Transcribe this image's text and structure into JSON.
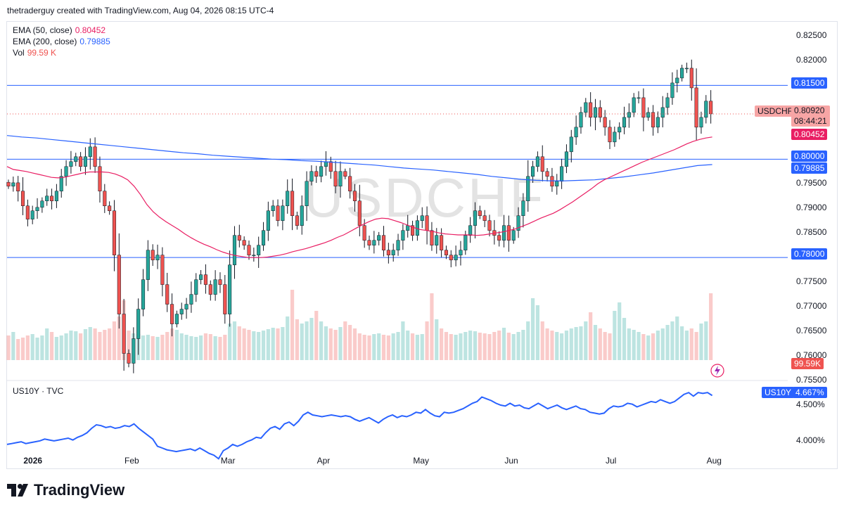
{
  "header": {
    "text": "thetraderguy created with TradingView.com, Aug 04, 2026 08:15 UTC-4"
  },
  "watermark": "USDCHF",
  "legend": {
    "ema50": {
      "label": "EMA (50, close)",
      "value": "0.80452",
      "color": "#e91e63"
    },
    "ema200": {
      "label": "EMA (200, close)",
      "value": "0.79885",
      "color": "#2962ff"
    },
    "vol": {
      "label": "Vol",
      "value": "99.59 K",
      "color": "#ef5350"
    }
  },
  "price_axis": {
    "ticks": [
      "0.82500",
      "0.82000",
      "0.81500",
      "0.81000",
      "0.80500",
      "0.80000",
      "0.79500",
      "0.79000",
      "0.78500",
      "0.78000",
      "0.77500",
      "0.77000",
      "0.76500",
      "0.76000",
      "0.75500"
    ]
  },
  "price_tags": {
    "symbol": "USDCHF",
    "last": "0.80920",
    "countdown": "08:44:21",
    "ema50": "0.80452",
    "ema200": "0.79885",
    "vol": "99.59K",
    "level_815": "0.81500",
    "level_800": "0.80000",
    "level_780": "0.78000"
  },
  "x_axis": {
    "labels": [
      "2026",
      "Feb",
      "Mar",
      "Apr",
      "May",
      "Jun",
      "Jul",
      "Aug"
    ]
  },
  "lower_pane": {
    "title": "US10Y · TVC",
    "symbol_tag": "US10Y",
    "last_tag": "4.667%",
    "ticks": [
      "4.500%",
      "4.000%"
    ]
  },
  "footer": {
    "brand": "TradingView"
  },
  "colors": {
    "up": "#26a69a",
    "down": "#ef5350",
    "ema50": "#e91e63",
    "ema200": "#2962ff",
    "hline": "#2962ff",
    "yields": "#2962ff"
  },
  "chart_data": {
    "type": "candlestick",
    "symbol": "USDCHF",
    "ylim": [
      0.755,
      0.8265
    ],
    "horizontal_levels": [
      0.815,
      0.8,
      0.78
    ],
    "last_price": 0.8092,
    "months": [
      {
        "label": "2026",
        "index": 4
      },
      {
        "label": "Feb",
        "index": 25
      },
      {
        "label": "Mar",
        "index": 45
      },
      {
        "label": "Apr",
        "index": 65
      },
      {
        "label": "May",
        "index": 85
      },
      {
        "label": "Jun",
        "index": 104
      },
      {
        "label": "Jul",
        "index": 125
      },
      {
        "label": "Aug",
        "index": 146
      }
    ],
    "close": [
      0.7945,
      0.7952,
      0.7935,
      0.7905,
      0.7878,
      0.7895,
      0.7902,
      0.7915,
      0.7925,
      0.7915,
      0.7935,
      0.7965,
      0.7985,
      0.7995,
      0.8005,
      0.7985,
      0.8005,
      0.8025,
      0.7985,
      0.7935,
      0.7905,
      0.7895,
      0.7805,
      0.7685,
      0.7605,
      0.7585,
      0.7635,
      0.7695,
      0.7755,
      0.7815,
      0.7795,
      0.7805,
      0.7745,
      0.7705,
      0.7665,
      0.7685,
      0.7695,
      0.7705,
      0.7725,
      0.7755,
      0.7765,
      0.7745,
      0.7725,
      0.7755,
      0.7745,
      0.7685,
      0.7785,
      0.7845,
      0.7835,
      0.7825,
      0.7805,
      0.7805,
      0.7825,
      0.7855,
      0.7895,
      0.7905,
      0.7875,
      0.7905,
      0.7935,
      0.7885,
      0.7865,
      0.7905,
      0.7955,
      0.7975,
      0.7965,
      0.7985,
      0.7995,
      0.7975,
      0.7945,
      0.7975,
      0.7965,
      0.7935,
      0.7915,
      0.7865,
      0.7835,
      0.7825,
      0.7835,
      0.7845,
      0.7815,
      0.7805,
      0.7815,
      0.7835,
      0.7855,
      0.7865,
      0.7845,
      0.7875,
      0.7885,
      0.7855,
      0.7825,
      0.7845,
      0.7815,
      0.7805,
      0.7795,
      0.7805,
      0.7815,
      0.7845,
      0.7865,
      0.7895,
      0.7885,
      0.7875,
      0.7855,
      0.7845,
      0.7835,
      0.7865,
      0.7835,
      0.7855,
      0.7885,
      0.7915,
      0.7965,
      0.7985,
      0.8005,
      0.7975,
      0.7965,
      0.7945,
      0.7955,
      0.7985,
      0.8015,
      0.8045,
      0.8065,
      0.8095,
      0.8115,
      0.8085,
      0.8105,
      0.8085,
      0.8065,
      0.8035,
      0.8055,
      0.8065,
      0.8085,
      0.8095,
      0.8125,
      0.8125,
      0.8085,
      0.8095,
      0.8065,
      0.8085,
      0.8105,
      0.8125,
      0.8155,
      0.8165,
      0.8185,
      0.8185,
      0.8145,
      0.8065,
      0.8085,
      0.8118,
      0.8092
    ],
    "ema50": [
      0.7985,
      0.7979,
      0.7977,
      0.7975,
      0.7972,
      0.7969,
      0.7966,
      0.7963,
      0.7962,
      0.7963,
      0.7966,
      0.7969,
      0.7972,
      0.7974,
      0.7974,
      0.7974,
      0.7973,
      0.797,
      0.7965,
      0.7958,
      0.7945,
      0.7928,
      0.7908,
      0.7893,
      0.7882,
      0.7873,
      0.7865,
      0.7857,
      0.7848,
      0.784,
      0.7833,
      0.7827,
      0.7822,
      0.7816,
      0.7811,
      0.7807,
      0.7804,
      0.7802,
      0.78,
      0.78,
      0.78,
      0.7801,
      0.7803,
      0.7805,
      0.7808,
      0.7812,
      0.7815,
      0.7818,
      0.7822,
      0.7826,
      0.783,
      0.7835,
      0.7841,
      0.7846,
      0.7853,
      0.786,
      0.7867,
      0.7873,
      0.7878,
      0.788,
      0.7879,
      0.7875,
      0.7871,
      0.7866,
      0.7861,
      0.7857,
      0.7855,
      0.7853,
      0.785,
      0.7848,
      0.7847,
      0.7846,
      0.7846,
      0.7846,
      0.7845,
      0.7846,
      0.7848,
      0.785,
      0.7852,
      0.7855,
      0.7858,
      0.7863,
      0.7868,
      0.7874,
      0.788,
      0.7885,
      0.789,
      0.7897,
      0.7905,
      0.7913,
      0.7922,
      0.7931,
      0.794,
      0.795,
      0.7958,
      0.7964,
      0.797,
      0.7976,
      0.7982,
      0.7988,
      0.7994,
      0.7999,
      0.8004,
      0.8009,
      0.8014,
      0.8019,
      0.8025,
      0.8031,
      0.8036,
      0.804,
      0.8043,
      0.8045
    ],
    "ema200": [
      0.8048,
      0.8045,
      0.8043,
      0.804,
      0.8037,
      0.8034,
      0.8031,
      0.8028,
      0.8025,
      0.8022,
      0.8019,
      0.8016,
      0.8013,
      0.8011,
      0.8008,
      0.8006,
      0.8004,
      0.8002,
      0.8,
      0.7999,
      0.7997,
      0.7996,
      0.7994,
      0.7992,
      0.799,
      0.7988,
      0.7985,
      0.7982,
      0.798,
      0.7978,
      0.7975,
      0.7972,
      0.7969,
      0.7965,
      0.7962,
      0.7959,
      0.7957,
      0.7956,
      0.7956,
      0.7957,
      0.7958,
      0.7961,
      0.7964,
      0.7968,
      0.7972,
      0.7977,
      0.7982,
      0.7987,
      0.7989
    ],
    "volume_relative": [
      0.35,
      0.4,
      0.3,
      0.32,
      0.35,
      0.37,
      0.32,
      0.35,
      0.45,
      0.4,
      0.33,
      0.35,
      0.38,
      0.42,
      0.41,
      0.38,
      0.44,
      0.47,
      0.45,
      0.4,
      0.43,
      0.45,
      0.55,
      0.62,
      0.85,
      0.42,
      0.38,
      0.37,
      0.35,
      0.36,
      0.34,
      0.33,
      0.36,
      0.4,
      0.45,
      0.43,
      0.38,
      0.36,
      0.34,
      0.33,
      0.35,
      0.38,
      0.37,
      0.34,
      0.33,
      0.36,
      0.52,
      0.55,
      0.48,
      0.45,
      0.43,
      0.41,
      0.4,
      0.42,
      0.44,
      0.46,
      0.45,
      0.47,
      0.62,
      1.0,
      0.58,
      0.52,
      0.55,
      0.6,
      0.7,
      0.55,
      0.48,
      0.45,
      0.43,
      0.47,
      0.55,
      0.5,
      0.45,
      0.38,
      0.36,
      0.35,
      0.37,
      0.38,
      0.36,
      0.35,
      0.38,
      0.4,
      0.55,
      0.42,
      0.38,
      0.36,
      0.37,
      0.55,
      0.95,
      0.58,
      0.45,
      0.4,
      0.37,
      0.36,
      0.38,
      0.4,
      0.42,
      0.41,
      0.39,
      0.38,
      0.37,
      0.4,
      0.42,
      0.46,
      0.39,
      0.37,
      0.4,
      0.43,
      0.55,
      0.88,
      0.78,
      0.55,
      0.45,
      0.42,
      0.4,
      0.38,
      0.42,
      0.45,
      0.47,
      0.48,
      0.55,
      0.68,
      0.5,
      0.45,
      0.4,
      0.38,
      0.7,
      0.82,
      0.6,
      0.45,
      0.43,
      0.4,
      0.37,
      0.35,
      0.38,
      0.42,
      0.45,
      0.5,
      0.55,
      0.62,
      0.48,
      0.42,
      0.45,
      0.4,
      0.52,
      0.55,
      0.95,
      0.62,
      0.48
    ],
    "us10y": [
      4.12,
      4.13,
      4.14,
      4.15,
      4.13,
      4.14,
      4.15,
      4.16,
      4.18,
      4.17,
      4.16,
      4.17,
      4.18,
      4.19,
      4.17,
      4.2,
      4.22,
      4.25,
      4.3,
      4.34,
      4.33,
      4.31,
      4.32,
      4.3,
      4.31,
      4.33,
      4.32,
      4.35,
      4.3,
      4.26,
      4.22,
      4.18,
      4.1,
      4.08,
      4.06,
      4.05,
      4.04,
      4.05,
      4.06,
      4.07,
      4.05,
      4.08,
      4.05,
      4.02,
      4.0,
      3.96,
      4.05,
      4.08,
      4.12,
      4.1,
      4.12,
      4.15,
      4.17,
      4.2,
      4.19,
      4.25,
      4.3,
      4.32,
      4.29,
      4.35,
      4.37,
      4.33,
      4.38,
      4.45,
      4.48,
      4.45,
      4.44,
      4.43,
      4.44,
      4.45,
      4.44,
      4.43,
      4.44,
      4.43,
      4.4,
      4.38,
      4.4,
      4.42,
      4.39,
      4.36,
      4.4,
      4.43,
      4.45,
      4.42,
      4.44,
      4.43,
      4.45,
      4.48,
      4.47,
      4.51,
      4.47,
      4.44,
      4.43,
      4.48,
      4.47,
      4.48,
      4.5,
      4.52,
      4.55,
      4.58,
      4.6,
      4.65,
      4.63,
      4.61,
      4.58,
      4.56,
      4.55,
      4.58,
      4.55,
      4.56,
      4.53,
      4.52,
      4.55,
      4.58,
      4.55,
      4.52,
      4.54,
      4.56,
      4.53,
      4.51,
      4.53,
      4.55,
      4.52,
      4.51,
      4.48,
      4.47,
      4.46,
      4.47,
      4.52,
      4.55,
      4.54,
      4.55,
      4.58,
      4.57,
      4.54,
      4.56,
      4.58,
      4.6,
      4.59,
      4.62,
      4.6,
      4.58,
      4.6,
      4.64,
      4.68,
      4.7,
      4.66,
      4.7,
      4.69,
      4.7,
      4.667
    ],
    "us10y_ylim": [
      3.86,
      4.78
    ]
  }
}
